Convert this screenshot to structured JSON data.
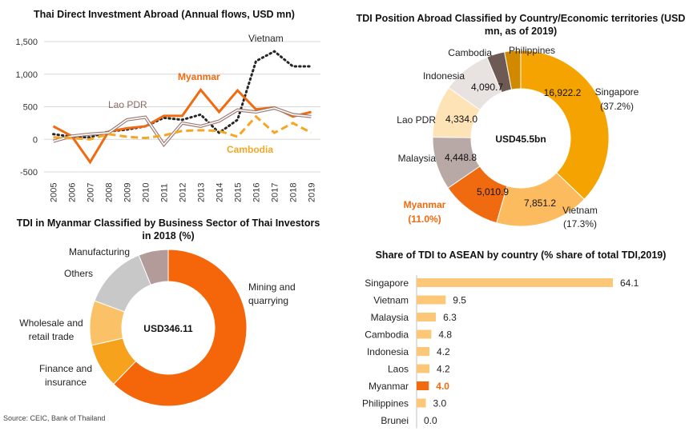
{
  "source": "Source: CEIC, Bank of Thailand",
  "chart_data": [
    {
      "id": "flows",
      "type": "line",
      "title": "Thai Direct Investment Abroad (Annual flows, USD mn)",
      "x": [
        "2005",
        "2006",
        "2007",
        "2008",
        "2009",
        "2010",
        "2011",
        "2012",
        "2013",
        "2014",
        "2015",
        "2016",
        "2017",
        "2018",
        "2019"
      ],
      "ylim": [
        -500,
        1500
      ],
      "yticks": [
        -500,
        0,
        500,
        1000,
        1500
      ],
      "ytick_labels": [
        "-500",
        "0",
        "500",
        "1,000",
        "1,500"
      ],
      "series": [
        {
          "name": "Vietnam",
          "color": "#262626",
          "style": "dotted",
          "values": [
            80,
            40,
            30,
            120,
            150,
            200,
            330,
            300,
            380,
            100,
            300,
            1200,
            1350,
            1120,
            1120
          ]
        },
        {
          "name": "Myanmar",
          "color": "#f06a0f",
          "style": "solid",
          "values": [
            200,
            50,
            -350,
            120,
            170,
            200,
            360,
            360,
            760,
            420,
            750,
            460,
            490,
            350,
            420
          ]
        },
        {
          "name": "Lao PDR",
          "color": "#9e7a74",
          "style": "double",
          "values": [
            -30,
            50,
            80,
            100,
            300,
            340,
            -80,
            250,
            200,
            280,
            450,
            420,
            480,
            380,
            350
          ]
        },
        {
          "name": "Cambodia",
          "color": "#f5a623",
          "style": "dashed",
          "values": [
            30,
            20,
            0,
            80,
            40,
            20,
            60,
            130,
            140,
            130,
            40,
            350,
            100,
            250,
            100
          ]
        }
      ]
    },
    {
      "id": "tdi_position",
      "type": "pie",
      "title": "TDI Position Abroad Classified by Country/Economic territories (USD mn, as of 2019)",
      "center_label": "USD45.5bn",
      "slices": [
        {
          "label": "Singapore",
          "value": 16922.2,
          "value_label": "16,922.2",
          "share": "(37.2%)",
          "color": "#f5a300"
        },
        {
          "label": "Vietnam",
          "value": 7851.2,
          "value_label": "7,851.2",
          "share": "(17.3%)",
          "color": "#fbbb5e"
        },
        {
          "label": "Myanmar",
          "value": 5010.9,
          "value_label": "5,010.9",
          "share": "(11.0%)",
          "color": "#f06a0f"
        },
        {
          "label": "Malaysia",
          "value": 4448.8,
          "value_label": "4,448.8",
          "share": "",
          "color": "#b8a9a6"
        },
        {
          "label": "Lao PDR",
          "value": 4334.0,
          "value_label": "4,334.0",
          "share": "",
          "color": "#fde3b6"
        },
        {
          "label": "Indonesia",
          "value": 4090.7,
          "value_label": "4,090.7",
          "share": "",
          "color": "#e8e2e0"
        },
        {
          "label": "Cambodia",
          "value": 1500,
          "value_label": "",
          "share": "",
          "color": "#6e5a55"
        },
        {
          "label": "Philippines",
          "value": 1350,
          "value_label": "",
          "share": "",
          "color": "#d18a00"
        }
      ]
    },
    {
      "id": "myanmar_sector",
      "type": "pie",
      "title": "TDI in Myanmar Classified by Business Sector of Thai Investors in 2018 (%)",
      "center_label": "USD346.11",
      "slices": [
        {
          "label": "Mining and quarrying",
          "value": 61,
          "color": "#f5660a"
        },
        {
          "label": "Finance and insurance",
          "value": 9,
          "color": "#f7a21c"
        },
        {
          "label": "Wholesale and retail trade",
          "value": 9,
          "color": "#fbc166"
        },
        {
          "label": "Others",
          "value": 13,
          "color": "#c8c8c8"
        },
        {
          "label": "Manufacturing",
          "value": 6,
          "color": "#b29b98"
        }
      ]
    },
    {
      "id": "asean_share",
      "type": "bar",
      "title": "Share of TDI to ASEAN by country (% share of total TDI,2019)",
      "categories": [
        "Singapore",
        "Vietnam",
        "Malaysia",
        "Cambodia",
        "Indonesia",
        "Laos",
        "Myanmar",
        "Philippines",
        "Brunei"
      ],
      "values": [
        64.1,
        9.5,
        6.3,
        4.8,
        4.2,
        4.2,
        4.0,
        3.0,
        0.0
      ],
      "value_labels": [
        "64.1",
        "9.5",
        "6.3",
        "4.8",
        "4.2",
        "4.2",
        "4.0",
        "3.0",
        "0.0"
      ],
      "colors": [
        "#fcc878",
        "#fcc878",
        "#fcc878",
        "#fcc878",
        "#fcc878",
        "#fcc878",
        "#f06a0f",
        "#fcc878",
        "#fcc878"
      ],
      "highlight_color": "#f06a0f"
    }
  ]
}
